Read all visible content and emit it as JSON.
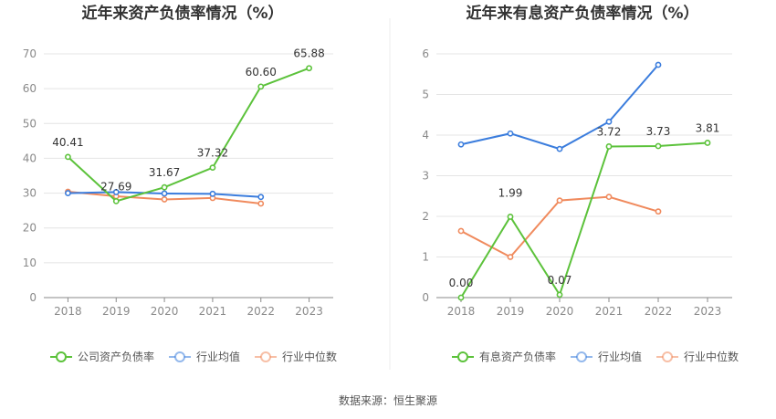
{
  "source": "数据来源：恒生聚源",
  "colors": {
    "company": "#5cc23b",
    "industry_avg": "#3b7ddd",
    "industry_median": "#f08a5d",
    "grid": "#e4e4e4",
    "axis": "#8a8a8a"
  },
  "chart_data": [
    {
      "type": "line",
      "title": "近年来资产负债率情况（%）",
      "categories": [
        "2018",
        "2019",
        "2020",
        "2021",
        "2022",
        "2023"
      ],
      "ylim": [
        0,
        70
      ],
      "yticks": [
        0,
        10,
        20,
        30,
        40,
        50,
        60,
        70
      ],
      "grid": true,
      "legend_position": "bottom",
      "series": [
        {
          "name": "公司资产负债率",
          "color": "#5cc23b",
          "values": [
            40.41,
            27.69,
            31.67,
            37.32,
            60.6,
            65.88
          ],
          "labels": [
            "40.41",
            "27.69",
            "31.67",
            "37.32",
            "60.60",
            "65.88"
          ]
        },
        {
          "name": "行业均值",
          "color": "#3b7ddd",
          "values": [
            30.0,
            30.3,
            29.9,
            29.8,
            28.9,
            null
          ],
          "labels": []
        },
        {
          "name": "行业中位数",
          "color": "#f08a5d",
          "values": [
            30.4,
            29.1,
            28.2,
            28.6,
            27.0,
            null
          ],
          "labels": []
        }
      ]
    },
    {
      "type": "line",
      "title": "近年来有息资产负债率情况（%）",
      "categories": [
        "2018",
        "2019",
        "2020",
        "2021",
        "2022",
        "2023"
      ],
      "ylim": [
        0,
        6
      ],
      "yticks": [
        0,
        1,
        2,
        3,
        4,
        5,
        6
      ],
      "grid": true,
      "legend_position": "bottom",
      "series": [
        {
          "name": "有息资产负债率",
          "color": "#5cc23b",
          "values": [
            0.0,
            1.99,
            0.07,
            3.72,
            3.73,
            3.81
          ],
          "labels": [
            "0.00",
            "1.99",
            "0.07",
            "3.72",
            "3.73",
            "3.81"
          ]
        },
        {
          "name": "行业均值",
          "color": "#3b7ddd",
          "values": [
            3.77,
            4.04,
            3.66,
            4.33,
            5.73,
            null
          ],
          "labels": []
        },
        {
          "name": "行业中位数",
          "color": "#f08a5d",
          "values": [
            1.64,
            1.0,
            2.39,
            2.48,
            2.12,
            null
          ],
          "labels": []
        }
      ]
    }
  ]
}
